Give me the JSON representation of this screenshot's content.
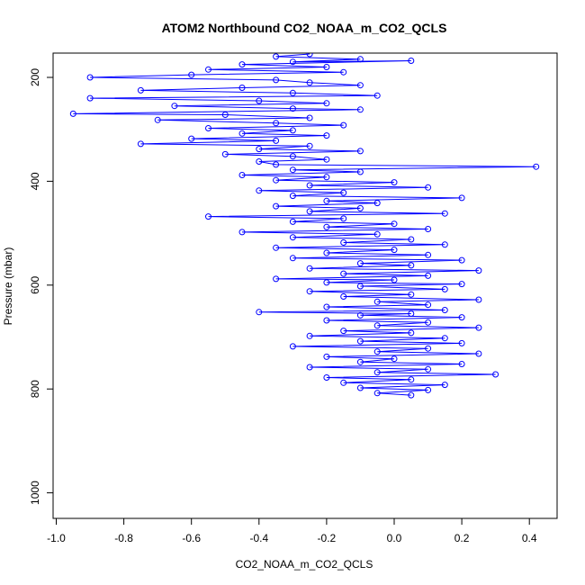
{
  "chart_data": {
    "type": "scatter",
    "title": "ATOM2 Northbound CO2_NOAA_m_CO2_QCLS",
    "xlabel": "CO2_NOAA_m_CO2_QCLS",
    "ylabel": "Pressure (mbar)",
    "xlim": [
      -1.0,
      0.5
    ],
    "ylim": [
      1050,
      150
    ],
    "y_inverted": true,
    "x_ticks": [
      -1.0,
      -0.8,
      -0.6,
      -0.4,
      -0.2,
      0.0,
      0.2,
      0.4
    ],
    "x_tick_labels": [
      "-1.0",
      "-0.8",
      "-0.6",
      "-0.4",
      "-0.2",
      "0.0",
      "0.2",
      "0.4"
    ],
    "y_ticks": [
      200,
      400,
      600,
      800,
      1000
    ],
    "y_tick_labels": [
      "200",
      "400",
      "600",
      "800",
      "1000"
    ],
    "grid": false,
    "legend": "none",
    "series": [
      {
        "name": "CO2_NOAA_m_CO2_QCLS",
        "color": "#0000ff",
        "marker": "open-circle",
        "connect_points": true,
        "points": [
          [
            -0.25,
            155
          ],
          [
            -0.35,
            160
          ],
          [
            -0.1,
            165
          ],
          [
            -0.3,
            170
          ],
          [
            0.05,
            168
          ],
          [
            -0.45,
            175
          ],
          [
            -0.2,
            180
          ],
          [
            -0.55,
            185
          ],
          [
            -0.15,
            190
          ],
          [
            -0.6,
            195
          ],
          [
            -0.9,
            200
          ],
          [
            -0.35,
            205
          ],
          [
            -0.25,
            210
          ],
          [
            -0.1,
            215
          ],
          [
            -0.45,
            220
          ],
          [
            -0.75,
            225
          ],
          [
            -0.3,
            230
          ],
          [
            -0.05,
            235
          ],
          [
            -0.9,
            240
          ],
          [
            -0.4,
            245
          ],
          [
            -0.2,
            250
          ],
          [
            -0.65,
            255
          ],
          [
            -0.3,
            260
          ],
          [
            -0.1,
            262
          ],
          [
            -0.95,
            270
          ],
          [
            -0.5,
            272
          ],
          [
            -0.25,
            278
          ],
          [
            -0.7,
            282
          ],
          [
            -0.35,
            288
          ],
          [
            -0.15,
            292
          ],
          [
            -0.55,
            298
          ],
          [
            -0.3,
            302
          ],
          [
            -0.45,
            308
          ],
          [
            -0.2,
            312
          ],
          [
            -0.6,
            318
          ],
          [
            -0.35,
            322
          ],
          [
            -0.75,
            328
          ],
          [
            -0.25,
            332
          ],
          [
            -0.4,
            338
          ],
          [
            -0.1,
            342
          ],
          [
            -0.5,
            348
          ],
          [
            -0.3,
            352
          ],
          [
            -0.2,
            358
          ],
          [
            -0.4,
            362
          ],
          [
            -0.35,
            368
          ],
          [
            0.42,
            372
          ],
          [
            -0.3,
            378
          ],
          [
            -0.1,
            382
          ],
          [
            -0.45,
            388
          ],
          [
            -0.2,
            392
          ],
          [
            -0.35,
            398
          ],
          [
            0.0,
            402
          ],
          [
            -0.25,
            408
          ],
          [
            0.1,
            412
          ],
          [
            -0.4,
            418
          ],
          [
            -0.15,
            422
          ],
          [
            -0.3,
            428
          ],
          [
            0.2,
            432
          ],
          [
            -0.2,
            438
          ],
          [
            -0.05,
            442
          ],
          [
            -0.35,
            448
          ],
          [
            -0.1,
            452
          ],
          [
            -0.25,
            458
          ],
          [
            0.15,
            462
          ],
          [
            -0.55,
            468
          ],
          [
            -0.15,
            472
          ],
          [
            -0.3,
            478
          ],
          [
            0.0,
            482
          ],
          [
            -0.2,
            488
          ],
          [
            0.1,
            492
          ],
          [
            -0.45,
            498
          ],
          [
            -0.05,
            502
          ],
          [
            -0.3,
            508
          ],
          [
            0.05,
            512
          ],
          [
            -0.15,
            518
          ],
          [
            0.15,
            522
          ],
          [
            -0.35,
            528
          ],
          [
            0.0,
            532
          ],
          [
            -0.2,
            538
          ],
          [
            0.1,
            542
          ],
          [
            -0.3,
            548
          ],
          [
            0.2,
            552
          ],
          [
            -0.1,
            558
          ],
          [
            0.05,
            562
          ],
          [
            -0.25,
            568
          ],
          [
            0.25,
            572
          ],
          [
            -0.15,
            578
          ],
          [
            0.1,
            582
          ],
          [
            -0.35,
            588
          ],
          [
            0.0,
            590
          ],
          [
            -0.2,
            595
          ],
          [
            0.2,
            598
          ],
          [
            -0.1,
            602
          ],
          [
            0.15,
            608
          ],
          [
            -0.25,
            612
          ],
          [
            0.05,
            618
          ],
          [
            -0.15,
            622
          ],
          [
            0.25,
            628
          ],
          [
            -0.05,
            632
          ],
          [
            0.1,
            638
          ],
          [
            -0.2,
            642
          ],
          [
            0.15,
            648
          ],
          [
            -0.4,
            652
          ],
          [
            0.05,
            655
          ],
          [
            -0.1,
            658
          ],
          [
            0.2,
            662
          ],
          [
            -0.2,
            668
          ],
          [
            0.1,
            672
          ],
          [
            -0.05,
            678
          ],
          [
            0.25,
            682
          ],
          [
            -0.15,
            688
          ],
          [
            0.05,
            692
          ],
          [
            -0.25,
            698
          ],
          [
            0.15,
            702
          ],
          [
            -0.1,
            708
          ],
          [
            0.2,
            712
          ],
          [
            -0.3,
            718
          ],
          [
            0.1,
            722
          ],
          [
            -0.05,
            728
          ],
          [
            0.25,
            732
          ],
          [
            -0.2,
            738
          ],
          [
            0.0,
            742
          ],
          [
            -0.1,
            748
          ],
          [
            0.2,
            752
          ],
          [
            -0.25,
            758
          ],
          [
            0.1,
            762
          ],
          [
            -0.05,
            768
          ],
          [
            0.3,
            772
          ],
          [
            -0.2,
            778
          ],
          [
            0.05,
            782
          ],
          [
            -0.15,
            788
          ],
          [
            0.15,
            792
          ],
          [
            -0.1,
            798
          ],
          [
            0.1,
            802
          ],
          [
            -0.05,
            808
          ],
          [
            0.05,
            812
          ]
        ]
      }
    ]
  }
}
